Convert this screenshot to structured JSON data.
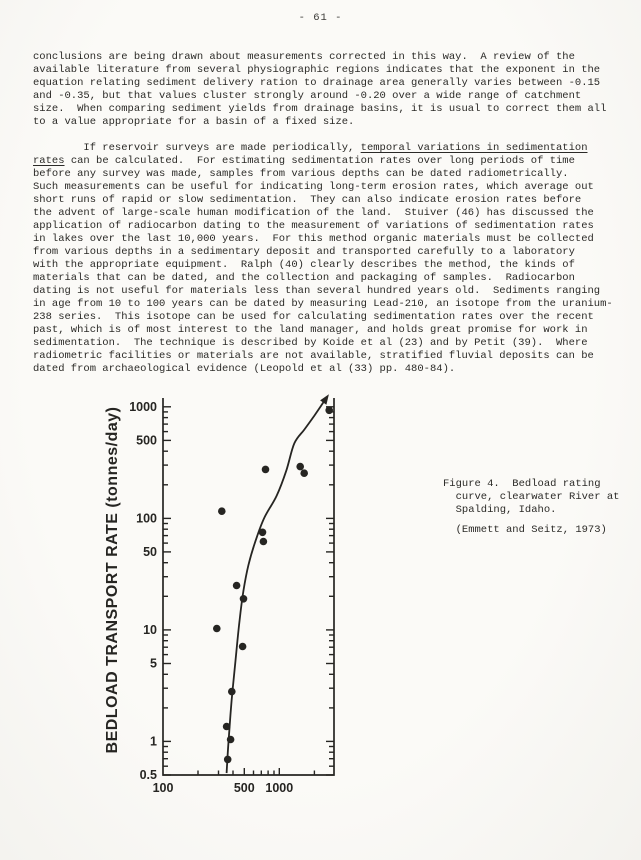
{
  "page": {
    "number_label": "- 61 -"
  },
  "colors": {
    "ink": "#262522",
    "paper": "#f8f7f4"
  },
  "paragraphs": [
    {
      "lines": [
        "conclusions are being drawn about measurements corrected in this way.  A review of the",
        "available literature from several physiographic regions indicates that the exponent in the",
        "equation relating sediment delivery ration to drainage area generally varies between -0.15",
        "and -0.35, but that values cluster strongly around -0.20 over a wide range of catchment",
        "size.  When comparing sediment yields from drainage basins, it is usual to correct them all",
        "to a value appropriate for a basin of a fixed size."
      ]
    },
    {
      "lines": [
        [
          {
            "t": "        If reservoir surveys are made periodically, ",
            "u": false
          },
          {
            "t": "temporal variations in sedimentation",
            "u": true
          }
        ],
        [
          {
            "t": "rates",
            "u": true
          },
          {
            "t": " can be calculated.  For estimating sedimentation rates over long periods of time",
            "u": false
          }
        ],
        "before any survey was made, samples from various depths can be dated radiometrically.",
        "Such measurements can be useful for indicating long-term erosion rates, which average out",
        "short runs of rapid or slow sedimentation.  They can also indicate erosion rates before",
        "the advent of large-scale human modification of the land.  Stuiver (46) has discussed the",
        "application of radiocarbon dating to the measurement of variations of sedimentation rates",
        "in lakes over the last 10,000 years.  For this method organic materials must be collected",
        "from various depths in a sedimentary deposit and transported carefully to a laboratory",
        "with the appropriate equipment.  Ralph (40) clearly describes the method, the kinds of",
        "materials that can be dated, and the collection and packaging of samples.  Radiocarbon",
        "dating is not useful for materials less than several hundred years old.  Sediments ranging",
        "in age from 10 to 100 years can be dated by measuring Lead-210, an isotope from the uranium-",
        "238 series.  This isotope can be used for calculating sedimentation rates over the recent",
        "past, which is of most interest to the land manager, and holds great promise for work in",
        "sedimentation.  The technique is described by Koide et al (23) and by Petit (39).  Where",
        "radiometric facilities or materials are not available, stratified fluvial deposits can be",
        "dated from archaeological evidence (Leopold et al (33) pp. 480-84)."
      ]
    }
  ],
  "figure": {
    "caption": {
      "lines": [
        "Figure 4.  Bedload rating",
        "  curve, clearwater River at",
        "  Spalding, Idaho."
      ],
      "credit": "  (Emmett and Seitz, 1973)"
    },
    "chart_data": {
      "type": "scatter",
      "title": "",
      "xlabel": "",
      "ylabel": "BEDLOAD TRANSPORT RATE  (tonnes/day)",
      "x_scale": "log",
      "y_scale": "log",
      "xlim": [
        100,
        2950
      ],
      "ylim": [
        0.5,
        1200
      ],
      "grid": false,
      "x_ticks": {
        "major": [
          500,
          1000
        ],
        "minor": [
          200,
          300,
          400,
          600,
          700,
          800,
          900,
          2000
        ],
        "labeled": [
          100,
          500,
          1000
        ]
      },
      "y_ticks": {
        "major": [
          1000,
          500,
          100,
          50,
          10,
          5,
          1,
          0.5
        ],
        "minor": [
          0.6,
          0.7,
          0.8,
          0.9,
          2,
          3,
          4,
          6,
          7,
          8,
          9,
          20,
          30,
          40,
          60,
          70,
          80,
          90,
          200,
          300,
          400,
          600,
          700,
          800,
          900
        ]
      },
      "points": [
        [
          290,
          10.3
        ],
        [
          320,
          116
        ],
        [
          352,
          1.36
        ],
        [
          360,
          0.69
        ],
        [
          381,
          1.04
        ],
        [
          390,
          2.8
        ],
        [
          429,
          25
        ],
        [
          483,
          7.1
        ],
        [
          492,
          19
        ],
        [
          716,
          75
        ],
        [
          730,
          62
        ],
        [
          760,
          275
        ],
        [
          1510,
          291
        ],
        [
          1635,
          254
        ],
        [
          2680,
          930
        ]
      ],
      "curve": [
        [
          352,
          0.52
        ],
        [
          366,
          1.02
        ],
        [
          389,
          2.33
        ],
        [
          420,
          5.3
        ],
        [
          455,
          12.2
        ],
        [
          492,
          22.6
        ],
        [
          542,
          38
        ],
        [
          625,
          63
        ],
        [
          745,
          102
        ],
        [
          950,
          160
        ],
        [
          1150,
          270
        ],
        [
          1345,
          470
        ],
        [
          1640,
          625
        ],
        [
          2000,
          835
        ],
        [
          2520,
          1190
        ]
      ],
      "curve_ends_with_arrow": true
    }
  }
}
